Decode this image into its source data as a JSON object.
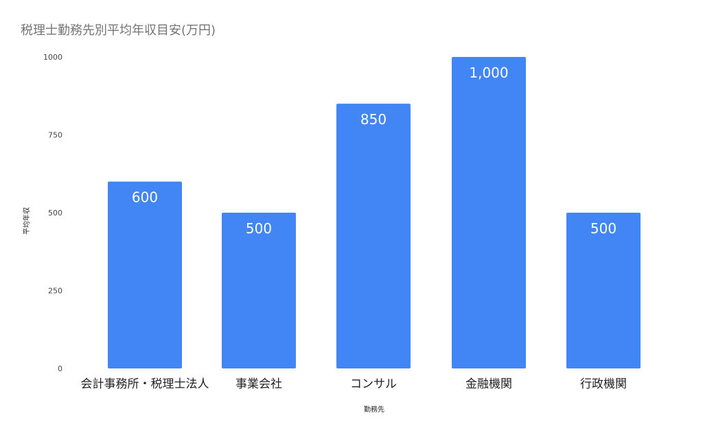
{
  "chart_data": {
    "type": "bar",
    "title": "税理士勤務先別平均年収目安(万円)",
    "xlabel": "勤務先",
    "ylabel": "平均年収",
    "categories": [
      "会計事務所・税理士法人",
      "事業会社",
      "コンサル",
      "金融機関",
      "行政機関"
    ],
    "values": [
      600,
      500,
      850,
      1000,
      500
    ],
    "data_labels": [
      "600",
      "500",
      "850",
      "1,000",
      "500"
    ],
    "ylim": [
      0,
      1000
    ],
    "yticks": [
      0,
      250,
      500,
      750,
      1000
    ],
    "ytick_labels": [
      "0",
      "250",
      "500",
      "750",
      "1000"
    ],
    "grid": false,
    "legend": "none",
    "bar_color": "#4285f4"
  }
}
